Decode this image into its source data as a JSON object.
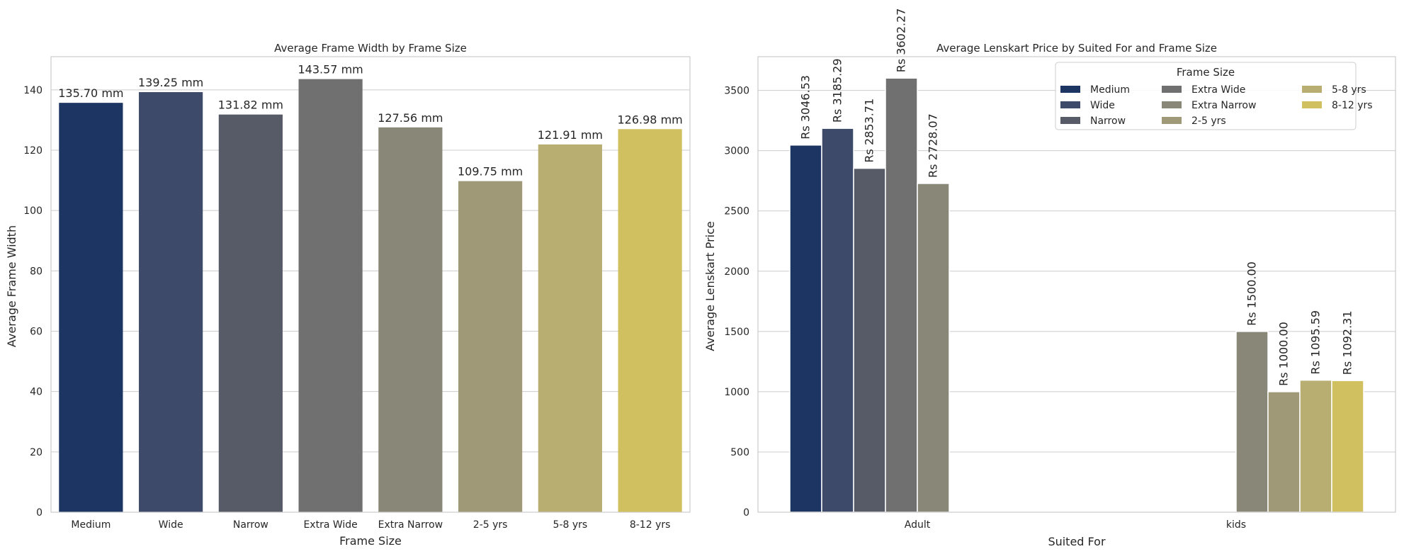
{
  "chart_data": [
    {
      "type": "bar",
      "title": "Average Frame Width by Frame Size",
      "xlabel": "Frame Size",
      "ylabel": "Average Frame Width",
      "ylim": [
        0,
        151
      ],
      "yticks": [
        "0",
        "20",
        "40",
        "60",
        "80",
        "100",
        "120",
        "140"
      ],
      "grid": "horizontal",
      "categories": [
        "Medium",
        "Wide",
        "Narrow",
        "Extra Wide",
        "Extra Narrow",
        "2-5 yrs",
        "5-8 yrs",
        "8-12 yrs"
      ],
      "values": [
        135.7,
        139.25,
        131.82,
        143.57,
        127.56,
        109.75,
        121.91,
        126.98
      ],
      "value_labels": [
        "135.70 mm",
        "139.25 mm",
        "131.82 mm",
        "143.57 mm",
        "127.56 mm",
        "109.75 mm",
        "121.91 mm",
        "126.98 mm"
      ],
      "colors": [
        "#1c3563",
        "#3e4a69",
        "#575b68",
        "#707070",
        "#888778",
        "#a09977",
        "#b9ae72",
        "#d1c05f"
      ]
    },
    {
      "type": "bar",
      "title": "Average Lenskart Price by Suited For and Frame Size",
      "xlabel": "Suited For",
      "ylabel": "Average Lenskart Price",
      "ylim": [
        0,
        3780
      ],
      "yticks": [
        "0",
        "500",
        "1000",
        "1500",
        "2000",
        "2500",
        "3000",
        "3500"
      ],
      "grid": "horizontal",
      "categories": [
        "Adult",
        "kids"
      ],
      "legend": {
        "title": "Frame Size",
        "placement": "top-right",
        "columns": 3
      },
      "series": [
        {
          "name": "Medium",
          "color": "#1c3563",
          "values": [
            3046.53,
            null
          ],
          "labels": [
            "Rs 3046.53",
            ""
          ]
        },
        {
          "name": "Wide",
          "color": "#3e4a69",
          "values": [
            3185.29,
            null
          ],
          "labels": [
            "Rs 3185.29",
            ""
          ]
        },
        {
          "name": "Narrow",
          "color": "#575b68",
          "values": [
            2853.71,
            null
          ],
          "labels": [
            "Rs 2853.71",
            ""
          ]
        },
        {
          "name": "Extra Wide",
          "color": "#707070",
          "values": [
            3602.27,
            null
          ],
          "labels": [
            "Rs 3602.27",
            ""
          ]
        },
        {
          "name": "Extra Narrow",
          "color": "#888778",
          "values": [
            2728.07,
            1500.0
          ],
          "labels": [
            "Rs 2728.07",
            "Rs 1500.00"
          ]
        },
        {
          "name": "2-5 yrs",
          "color": "#a09977",
          "values": [
            null,
            1000.0
          ],
          "labels": [
            "",
            "Rs 1000.00"
          ]
        },
        {
          "name": "5-8 yrs",
          "color": "#b9ae72",
          "values": [
            null,
            1095.59
          ],
          "labels": [
            "",
            "Rs 1095.59"
          ]
        },
        {
          "name": "8-12 yrs",
          "color": "#d1c05f",
          "values": [
            null,
            1092.31
          ],
          "labels": [
            "",
            "Rs 1092.31"
          ]
        }
      ]
    }
  ]
}
